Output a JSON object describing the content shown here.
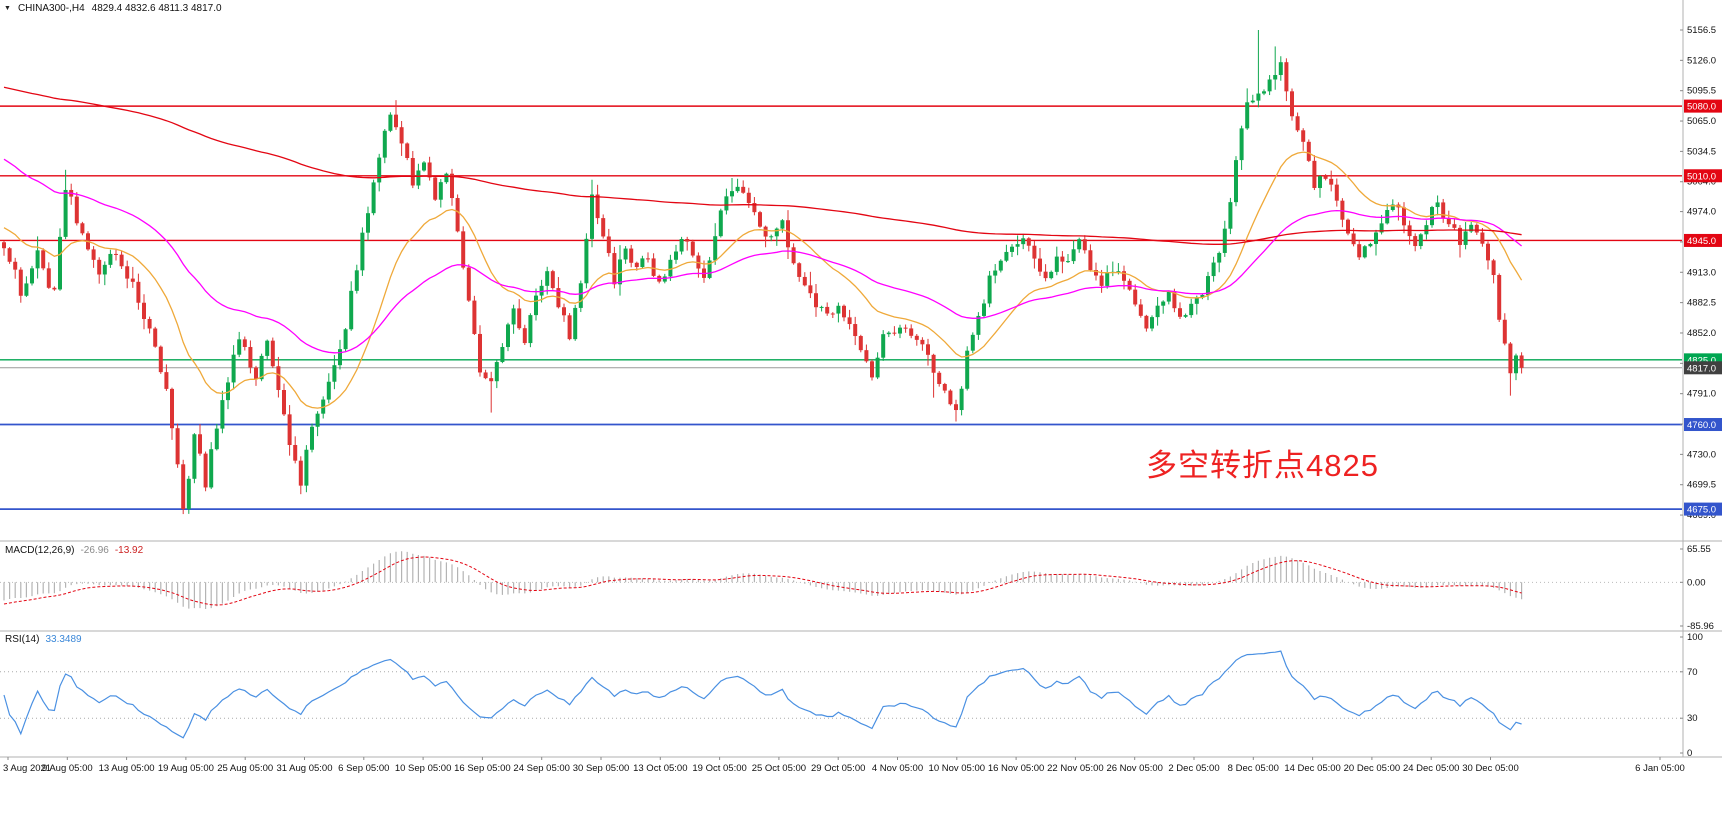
{
  "header": {
    "collapse_icon": "▼",
    "symbol": "CHINA300-,H4",
    "ohlc": "4829.4 4832.6 4811.3 4817.0"
  },
  "annotation": {
    "text": "多空转折点4825",
    "color": "#ee2222"
  },
  "levels": [
    {
      "value": 5080.0,
      "label": "5080.0",
      "line_color": "#e30613",
      "badge_color": "#e30613",
      "width": 1.4
    },
    {
      "value": 5010.0,
      "label": "5010.0",
      "line_color": "#e30613",
      "badge_color": "#e30613",
      "width": 1.4
    },
    {
      "value": 4945.0,
      "label": "4945.0",
      "line_color": "#e30613",
      "badge_color": "#e30613",
      "width": 1.4
    },
    {
      "value": 4825.0,
      "label": "4825.0",
      "line_color": "#00a651",
      "badge_color": "#00a651",
      "width": 1.4
    },
    {
      "value": 4817.0,
      "label": "4817.0",
      "line_color": "#9a9a9a",
      "badge_color": "#404040",
      "width": 1.0
    },
    {
      "value": 4760.0,
      "label": "4760.0",
      "line_color": "#3355cc",
      "badge_color": "#3355cc",
      "width": 1.8
    },
    {
      "value": 4675.0,
      "label": "4675.0",
      "line_color": "#3355cc",
      "badge_color": "#3355cc",
      "width": 1.8
    }
  ],
  "price_axis": {
    "ticks": [
      5156.5,
      5126.0,
      5095.5,
      5065.0,
      5034.5,
      5004.0,
      4974.0,
      4943.5,
      4913.0,
      4882.5,
      4852.0,
      4821.5,
      4791.0,
      4760.5,
      4730.0,
      4699.5,
      4669.0
    ]
  },
  "time_axis": {
    "labels": [
      "3 Aug 2021",
      "9 Aug 05:00",
      "13 Aug 05:00",
      "19 Aug 05:00",
      "25 Aug 05:00",
      "31 Aug 05:00",
      "6 Sep 05:00",
      "10 Sep 05:00",
      "16 Sep 05:00",
      "24 Sep 05:00",
      "30 Sep 05:00",
      "13 Oct 05:00",
      "19 Oct 05:00",
      "25 Oct 05:00",
      "29 Oct 05:00",
      "4 Nov 05:00",
      "10 Nov 05:00",
      "16 Nov 05:00",
      "22 Nov 05:00",
      "26 Nov 05:00",
      "2 Dec 05:00",
      "8 Dec 05:00",
      "14 Dec 05:00",
      "20 Dec 05:00",
      "24 Dec 05:00",
      "30 Dec 05:00",
      "6 Jan 05:00"
    ]
  },
  "colors": {
    "up": "#0fa84e",
    "down": "#dd3333",
    "grid": "#b0b0b0",
    "axis_text": "#111111"
  },
  "chart_data": {
    "type": "candlestick",
    "symbol": "CHINA300-",
    "timeframe": "H4",
    "title": "CHINA300-,H4",
    "candle_count": 272,
    "last_ohlc": {
      "open": 4829.4,
      "high": 4832.6,
      "low": 4811.3,
      "close": 4817.0
    },
    "extremes": {
      "high": 5156.5,
      "low": 4670.0
    },
    "price_anchors": [
      [
        0,
        4940
      ],
      [
        3,
        4895
      ],
      [
        6,
        4930
      ],
      [
        9,
        4890
      ],
      [
        11,
        5000
      ],
      [
        14,
        4950
      ],
      [
        17,
        4915
      ],
      [
        20,
        4935
      ],
      [
        23,
        4900
      ],
      [
        26,
        4855
      ],
      [
        29,
        4795
      ],
      [
        31,
        4720
      ],
      [
        32,
        4672
      ],
      [
        34,
        4750
      ],
      [
        36,
        4700
      ],
      [
        38,
        4760
      ],
      [
        40,
        4800
      ],
      [
        42,
        4850
      ],
      [
        45,
        4805
      ],
      [
        47,
        4845
      ],
      [
        49,
        4790
      ],
      [
        51,
        4745
      ],
      [
        53,
        4700
      ],
      [
        55,
        4760
      ],
      [
        58,
        4800
      ],
      [
        61,
        4860
      ],
      [
        63,
        4920
      ],
      [
        65,
        4975
      ],
      [
        67,
        5030
      ],
      [
        69,
        5070
      ],
      [
        71,
        5040
      ],
      [
        73,
        5005
      ],
      [
        75,
        5020
      ],
      [
        77,
        4985
      ],
      [
        79,
        5015
      ],
      [
        81,
        4950
      ],
      [
        83,
        4880
      ],
      [
        85,
        4815
      ],
      [
        87,
        4800
      ],
      [
        89,
        4840
      ],
      [
        91,
        4880
      ],
      [
        93,
        4845
      ],
      [
        95,
        4885
      ],
      [
        97,
        4915
      ],
      [
        99,
        4880
      ],
      [
        101,
        4850
      ],
      [
        103,
        4905
      ],
      [
        105,
        4995
      ],
      [
        107,
        4950
      ],
      [
        109,
        4905
      ],
      [
        111,
        4935
      ],
      [
        113,
        4915
      ],
      [
        115,
        4930
      ],
      [
        117,
        4900
      ],
      [
        119,
        4925
      ],
      [
        121,
        4950
      ],
      [
        123,
        4930
      ],
      [
        125,
        4905
      ],
      [
        127,
        4955
      ],
      [
        129,
        4985
      ],
      [
        131,
        5000
      ],
      [
        133,
        4985
      ],
      [
        135,
        4960
      ],
      [
        137,
        4945
      ],
      [
        139,
        4960
      ],
      [
        141,
        4925
      ],
      [
        143,
        4895
      ],
      [
        145,
        4880
      ],
      [
        147,
        4870
      ],
      [
        149,
        4885
      ],
      [
        151,
        4860
      ],
      [
        153,
        4835
      ],
      [
        155,
        4810
      ],
      [
        157,
        4845
      ],
      [
        159,
        4850
      ],
      [
        161,
        4860
      ],
      [
        163,
        4845
      ],
      [
        165,
        4825
      ],
      [
        167,
        4800
      ],
      [
        169,
        4780
      ],
      [
        170,
        4772
      ],
      [
        172,
        4830
      ],
      [
        174,
        4870
      ],
      [
        176,
        4905
      ],
      [
        178,
        4920
      ],
      [
        180,
        4940
      ],
      [
        182,
        4950
      ],
      [
        184,
        4925
      ],
      [
        186,
        4905
      ],
      [
        188,
        4925
      ],
      [
        190,
        4930
      ],
      [
        192,
        4945
      ],
      [
        194,
        4920
      ],
      [
        196,
        4905
      ],
      [
        198,
        4915
      ],
      [
        200,
        4905
      ],
      [
        202,
        4880
      ],
      [
        204,
        4860
      ],
      [
        206,
        4875
      ],
      [
        208,
        4890
      ],
      [
        210,
        4870
      ],
      [
        212,
        4880
      ],
      [
        214,
        4895
      ],
      [
        216,
        4920
      ],
      [
        218,
        4955
      ],
      [
        220,
        5020
      ],
      [
        222,
        5085
      ],
      [
        224,
        5090
      ],
      [
        226,
        5110
      ],
      [
        228,
        5120
      ],
      [
        230,
        5075
      ],
      [
        232,
        5040
      ],
      [
        234,
        5000
      ],
      [
        236,
        5010
      ],
      [
        238,
        4985
      ],
      [
        240,
        4950
      ],
      [
        242,
        4930
      ],
      [
        244,
        4940
      ],
      [
        246,
        4960
      ],
      [
        248,
        4985
      ],
      [
        250,
        4960
      ],
      [
        252,
        4945
      ],
      [
        254,
        4965
      ],
      [
        256,
        4985
      ],
      [
        258,
        4960
      ],
      [
        260,
        4945
      ],
      [
        262,
        4955
      ],
      [
        264,
        4940
      ],
      [
        265,
        4930
      ],
      [
        266,
        4905
      ],
      [
        267,
        4870
      ],
      [
        268,
        4840
      ],
      [
        269,
        4810
      ],
      [
        270,
        4829
      ],
      [
        271,
        4817
      ]
    ],
    "wick_overrides": [
      {
        "slot": 11,
        "high": 5016
      },
      {
        "slot": 32,
        "low": 4670
      },
      {
        "slot": 53,
        "low": 4690
      },
      {
        "slot": 70,
        "high": 5086
      },
      {
        "slot": 87,
        "low": 4772
      },
      {
        "slot": 105,
        "high": 5006
      },
      {
        "slot": 131,
        "high": 5007
      },
      {
        "slot": 166,
        "low": 4787
      },
      {
        "slot": 170,
        "low": 4763
      },
      {
        "slot": 224,
        "high": 5156.5
      },
      {
        "slot": 227,
        "high": 5140
      },
      {
        "slot": 269,
        "low": 4789
      }
    ],
    "moving_averages": [
      {
        "name": "ma-fast",
        "period": 20,
        "seed": 4960,
        "color": "#efa93a"
      },
      {
        "name": "ma-mid",
        "period": 55,
        "seed": 5030,
        "color": "#ff00ff"
      },
      {
        "name": "ma-slow",
        "period": 300,
        "seed": 5100,
        "color": "#e30613"
      }
    ],
    "indicators": {
      "macd": {
        "display": "MACD(12,26,9)",
        "display_main": "-26.96",
        "display_signal": "-13.92",
        "params": [
          12,
          26,
          9
        ],
        "value_main": -26.96,
        "value_signal": -13.92,
        "axis": [
          65.55,
          0.0,
          -85.96
        ],
        "seed_offsets": [
          -18,
          27,
          -50
        ],
        "hist_color": "#b4b4b4",
        "signal_color": "#e30613"
      },
      "rsi": {
        "display": "RSI(14)",
        "display_value": "33.3489",
        "period": 14,
        "value": 33.3489,
        "axis": [
          100,
          70,
          30,
          0
        ],
        "levels": [
          70,
          30
        ],
        "line_color": "#4a90e2"
      }
    }
  }
}
